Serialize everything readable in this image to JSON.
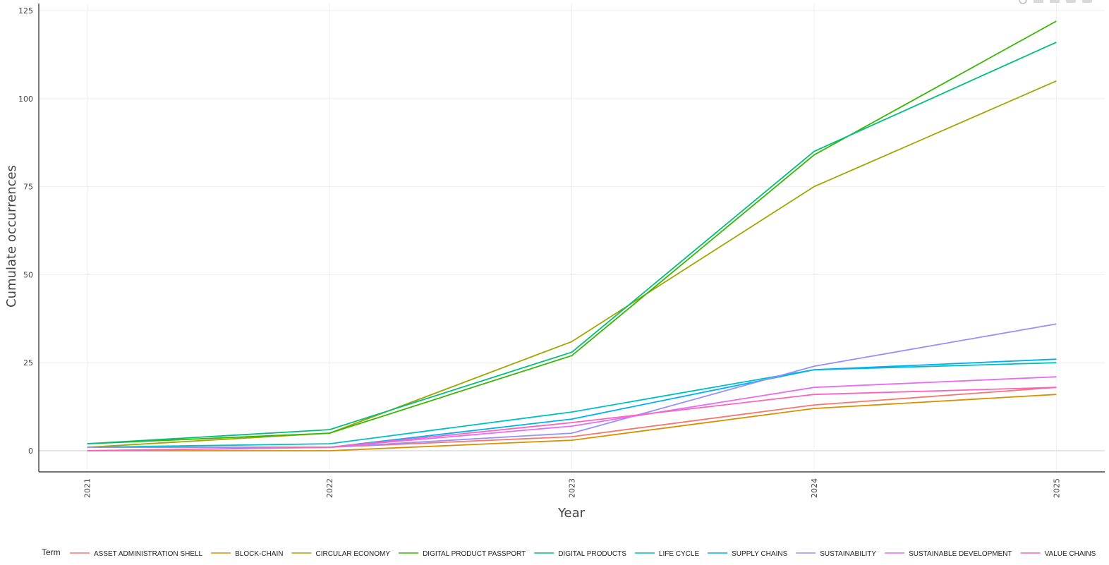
{
  "chart_data": {
    "type": "line",
    "title": "",
    "xlabel": "Year",
    "ylabel": "Cumulate occurrences",
    "x": [
      2021,
      2022,
      2023,
      2024,
      2025
    ],
    "xlim": [
      2020.8,
      2025.2
    ],
    "ylim": [
      -6,
      127
    ],
    "yticks": [
      0,
      25,
      50,
      75,
      100,
      125
    ],
    "grid": true,
    "legend_title": "Term",
    "legend_position": "bottom",
    "series": [
      {
        "name": "ASSET ADMINISTRATION SHELL",
        "color": "#F8766D",
        "values": [
          1,
          1,
          4,
          13,
          18
        ]
      },
      {
        "name": "BLOCK-CHAIN",
        "color": "#D89000",
        "values": [
          0,
          0,
          3,
          12,
          16
        ]
      },
      {
        "name": "CIRCULAR ECONOMY",
        "color": "#A3A500",
        "values": [
          1,
          5,
          31,
          75,
          105
        ]
      },
      {
        "name": "DIGITAL PRODUCT PASSPORT",
        "color": "#39B600",
        "values": [
          2,
          5,
          27,
          84,
          122
        ]
      },
      {
        "name": "DIGITAL PRODUCTS",
        "color": "#00BF7D",
        "values": [
          2,
          6,
          28,
          85,
          116
        ]
      },
      {
        "name": "LIFE CYCLE",
        "color": "#00BFC4",
        "values": [
          1,
          2,
          11,
          23,
          25
        ]
      },
      {
        "name": "SUPPLY CHAINS",
        "color": "#00B0F6",
        "values": [
          1,
          1,
          9,
          23,
          26
        ]
      },
      {
        "name": "SUSTAINABILITY",
        "color": "#9590FF",
        "values": [
          1,
          1,
          5,
          24,
          36
        ]
      },
      {
        "name": "SUSTAINABLE DEVELOPMENT",
        "color": "#E76BF3",
        "values": [
          0,
          1,
          7,
          18,
          21
        ]
      },
      {
        "name": "VALUE CHAINS",
        "color": "#FF62BC",
        "values": [
          0,
          1,
          8,
          16,
          18
        ]
      }
    ]
  }
}
